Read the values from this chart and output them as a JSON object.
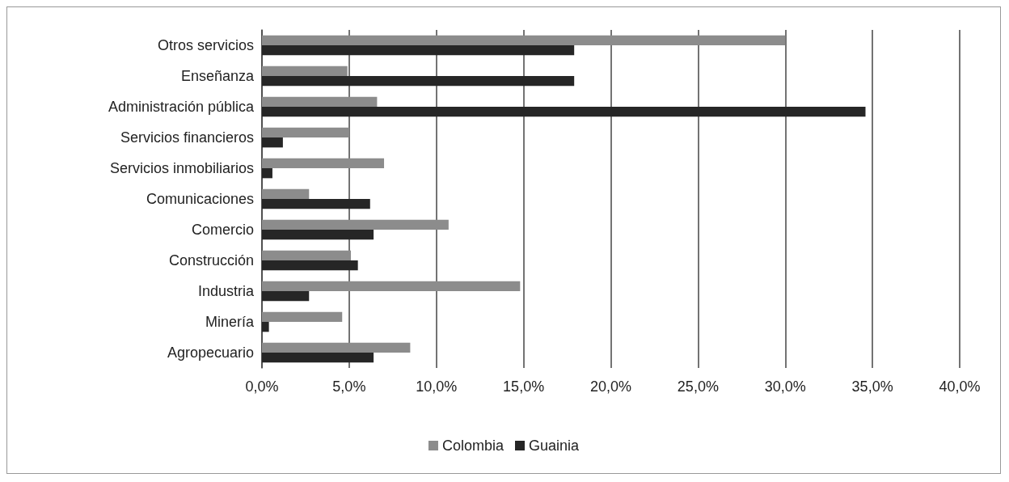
{
  "chart_data": {
    "type": "bar",
    "orientation": "horizontal",
    "categories": [
      "Otros servicios",
      "Enseñanza",
      "Administración pública",
      "Servicios financieros",
      "Servicios inmobiliarios",
      "Comunicaciones",
      "Comercio",
      "Construcción",
      "Industria",
      "Minería",
      "Agropecuario"
    ],
    "series": [
      {
        "name": "Colombia",
        "color": "#8c8c8c",
        "values": [
          30.0,
          4.9,
          6.6,
          5.0,
          7.0,
          2.7,
          10.7,
          5.1,
          14.8,
          4.6,
          8.5
        ]
      },
      {
        "name": "Guainia",
        "color": "#262626",
        "values": [
          17.9,
          17.9,
          34.6,
          1.2,
          0.6,
          6.2,
          6.4,
          5.5,
          2.7,
          0.4,
          6.4
        ]
      }
    ],
    "xlim": [
      0,
      40
    ],
    "xticks": [
      {
        "value": 0,
        "label": "0,0%"
      },
      {
        "value": 5,
        "label": "5,0%"
      },
      {
        "value": 10,
        "label": "10,0%"
      },
      {
        "value": 15,
        "label": "15,0%"
      },
      {
        "value": 20,
        "label": "20,0%"
      },
      {
        "value": 25,
        "label": "25,0%"
      },
      {
        "value": 30,
        "label": "30,0%"
      },
      {
        "value": 35,
        "label": "35,0%"
      },
      {
        "value": 40,
        "label": "40,0%"
      }
    ],
    "grid": "x",
    "legend": "bottom"
  }
}
